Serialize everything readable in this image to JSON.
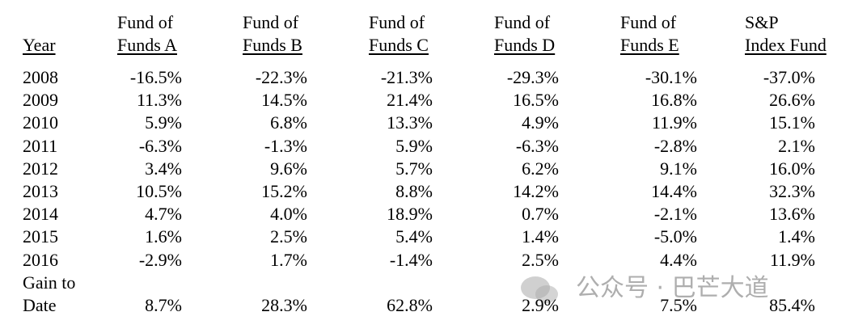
{
  "table": {
    "header": [
      [
        "Year"
      ],
      [
        "Fund of",
        "Funds A"
      ],
      [
        "Fund of",
        "Funds B"
      ],
      [
        "Fund of",
        "Funds C"
      ],
      [
        "Fund of",
        "Funds D"
      ],
      [
        "Fund of",
        "Funds E"
      ],
      [
        "S&P",
        "Index Fund"
      ]
    ],
    "rows": [
      [
        "2008",
        "-16.5%",
        "-22.3%",
        "-21.3%",
        "-29.3%",
        "-30.1%",
        "-37.0%"
      ],
      [
        "2009",
        "11.3%",
        "14.5%",
        "21.4%",
        "16.5%",
        "16.8%",
        "26.6%"
      ],
      [
        "2010",
        "5.9%",
        "6.8%",
        "13.3%",
        "4.9%",
        "11.9%",
        "15.1%"
      ],
      [
        "2011",
        "-6.3%",
        "-1.3%",
        "5.9%",
        "-6.3%",
        "-2.8%",
        "2.1%"
      ],
      [
        "2012",
        "3.4%",
        "9.6%",
        "5.7%",
        "6.2%",
        "9.1%",
        "16.0%"
      ],
      [
        "2013",
        "10.5%",
        "15.2%",
        "8.8%",
        "14.2%",
        "14.4%",
        "32.3%"
      ],
      [
        "2014",
        "4.7%",
        "4.0%",
        "18.9%",
        "0.7%",
        "-2.1%",
        "13.6%"
      ],
      [
        "2015",
        "1.6%",
        "2.5%",
        "5.4%",
        "1.4%",
        "-5.0%",
        "1.4%"
      ],
      [
        "2016",
        "-2.9%",
        "1.7%",
        "-1.4%",
        "2.5%",
        "4.4%",
        "11.9%"
      ]
    ],
    "total": {
      "label": [
        "Gain to",
        "Date"
      ],
      "values": [
        "8.7%",
        "28.3%",
        "62.8%",
        "2.9%",
        "7.5%",
        "85.4%"
      ]
    }
  },
  "watermark": "公众号 · 巴芒大道"
}
